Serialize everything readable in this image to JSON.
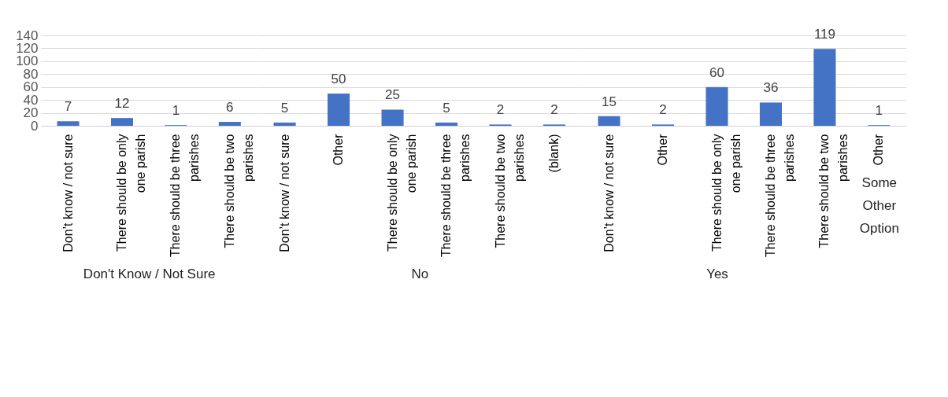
{
  "chart_data": [
    {
      "type": "bar",
      "categories": [
        "Don’t know / not sure",
        "There should be only one parish",
        "There should be three parishes",
        "There should be two parishes"
      ],
      "values": [
        7,
        12,
        1,
        6
      ],
      "color": "#4472c4",
      "xlabel": "Don't Know / Not Sure",
      "ylim": [
        0,
        140
      ],
      "yticks": [
        0,
        20,
        40,
        60,
        80,
        100,
        120,
        140
      ],
      "grid": "y",
      "data_labels": true,
      "tick_labels": "xy"
    },
    {
      "type": "bar",
      "categories": [
        "Don’t know / not sure",
        "Other",
        "There should be only one parish",
        "There should be three parishes",
        "There should be two parishes",
        "(blank)"
      ],
      "values": [
        5,
        50,
        25,
        5,
        2,
        2
      ],
      "color": "#4472c4",
      "xlabel": "No",
      "ylim": [
        0,
        140
      ],
      "yticks": [
        0,
        20,
        40,
        60,
        80,
        100,
        120,
        140
      ],
      "grid": "y",
      "data_labels": true,
      "tick_labels": "x"
    },
    {
      "type": "bar",
      "categories": [
        "Don’t know / not sure",
        "Other",
        "There should be only one parish",
        "There should be three parishes",
        "There should be two parishes"
      ],
      "values": [
        15,
        2,
        60,
        36,
        119
      ],
      "color": "#4472c4",
      "xlabel": "Yes",
      "ylim": [
        0,
        140
      ],
      "yticks": [
        0,
        20,
        40,
        60,
        80,
        100,
        120,
        140
      ],
      "grid": "y",
      "data_labels": true,
      "tick_labels": "x"
    },
    {
      "type": "bar",
      "categories": [
        "Other"
      ],
      "values": [
        1
      ],
      "color": "#4472c4",
      "xlabel": "Some Other Option",
      "ylim": [
        0,
        140
      ],
      "yticks": [
        0,
        20,
        40,
        60,
        80,
        100,
        120,
        140
      ],
      "grid": "y",
      "data_labels": true,
      "tick_labels": "x"
    }
  ]
}
